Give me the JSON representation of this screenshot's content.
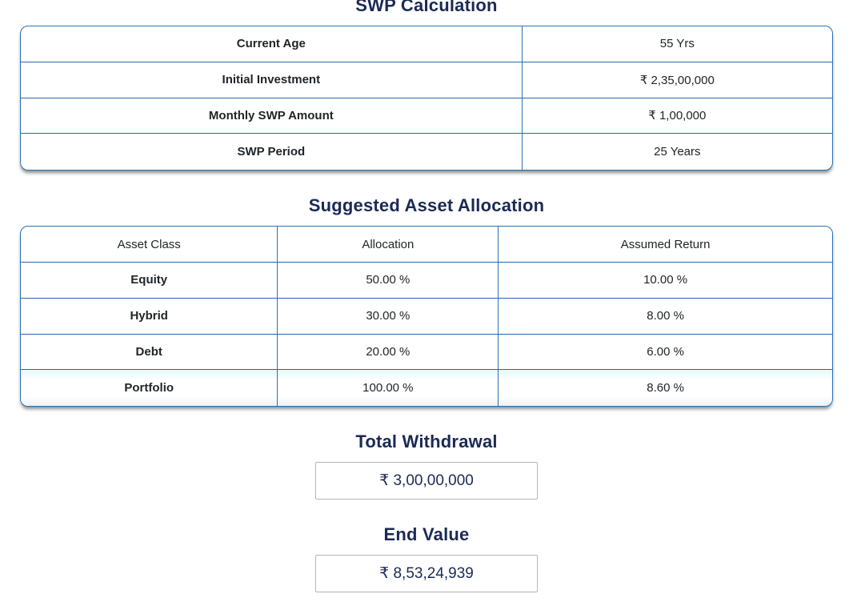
{
  "headings": {
    "swp_calculation": "SWP Calculation",
    "suggested_asset_allocation": "Suggested Asset Allocation",
    "total_withdrawal": "Total Withdrawal",
    "end_value": "End Value"
  },
  "swp_table": {
    "rows": [
      {
        "label": "Current Age",
        "value": "55 Yrs"
      },
      {
        "label": "Initial Investment",
        "value": "₹ 2,35,00,000"
      },
      {
        "label": "Monthly SWP Amount",
        "value": "₹ 1,00,000"
      },
      {
        "label": "SWP Period",
        "value": "25 Years"
      }
    ]
  },
  "allocation_table": {
    "headers": [
      "Asset Class",
      "Allocation",
      "Assumed Return"
    ],
    "rows": [
      {
        "asset_class": "Equity",
        "allocation": "50.00 %",
        "assumed_return": "10.00 %"
      },
      {
        "asset_class": "Hybrid",
        "allocation": "30.00 %",
        "assumed_return": "8.00 %"
      },
      {
        "asset_class": "Debt",
        "allocation": "20.00 %",
        "assumed_return": "6.00 %"
      },
      {
        "asset_class": "Portfolio",
        "allocation": "100.00 %",
        "assumed_return": "8.60 %"
      }
    ]
  },
  "results": {
    "total_withdrawal": "₹ 3,00,00,000",
    "end_value": "₹ 8,53,24,939"
  },
  "appearance": {
    "heading_color": "#1b2a55",
    "table_border_color": "#2a72b5",
    "row_line_color": "#2a66ab",
    "cell_text_color": "#212529",
    "result_box_border_color": "#b5b5b5"
  }
}
